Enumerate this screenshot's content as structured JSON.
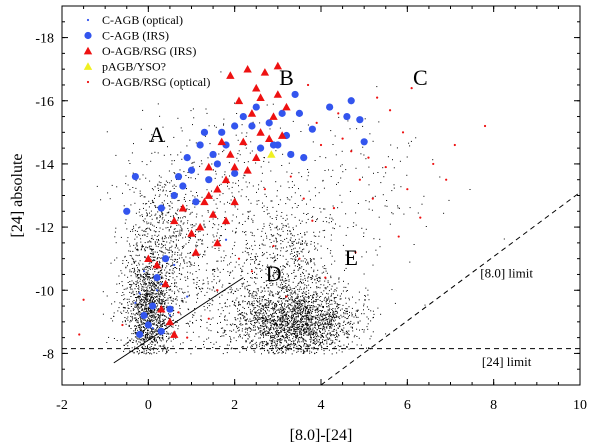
{
  "chart_data": {
    "type": "scatter",
    "title": "",
    "xlabel": "[8.0]-[24]",
    "ylabel": "[24] absolute",
    "xlim": [
      -2,
      10
    ],
    "ylim": [
      -7,
      -19
    ],
    "y_axis_inverted": true,
    "grid": false,
    "legend_position": "top-left",
    "x_ticks": [
      -2,
      0,
      2,
      4,
      6,
      8,
      10
    ],
    "y_ticks": [
      -8,
      -10,
      -12,
      -14,
      -16,
      -18
    ],
    "x_tick_labels": [
      "-2",
      "0",
      "2",
      "4",
      "6",
      "8",
      "10"
    ],
    "y_tick_labels": [
      "-8",
      "-10",
      "-12",
      "-14",
      "-16",
      "-18"
    ],
    "series": [
      {
        "name": "C-AGB (optical)",
        "marker": "small-dot",
        "color": "#3355ee",
        "points": [
          [
            -0.1,
            -10.6
          ],
          [
            0.3,
            -10.2
          ],
          [
            0.6,
            -10.8
          ],
          [
            -0.3,
            -9.6
          ],
          [
            0.5,
            -9.2
          ],
          [
            0.1,
            -8.8
          ],
          [
            1.8,
            -11.6
          ],
          [
            0.9,
            -9.8
          ],
          [
            0.2,
            -10.0
          ],
          [
            -0.2,
            -9.9
          ]
        ]
      },
      {
        "name": "C-AGB (IRS)",
        "marker": "filled-circle",
        "color": "#3355ee",
        "points": [
          [
            -0.3,
            -13.6
          ],
          [
            -0.5,
            -12.5
          ],
          [
            0.3,
            -12.6
          ],
          [
            0.6,
            -13.0
          ],
          [
            0.7,
            -13.6
          ],
          [
            0.9,
            -14.2
          ],
          [
            1.0,
            -13.8
          ],
          [
            1.2,
            -14.6
          ],
          [
            1.3,
            -15.0
          ],
          [
            1.5,
            -14.3
          ],
          [
            1.6,
            -14.0
          ],
          [
            1.8,
            -14.6
          ],
          [
            2.0,
            -15.2
          ],
          [
            2.2,
            -15.5
          ],
          [
            2.5,
            -15.8
          ],
          [
            2.8,
            -15.3
          ],
          [
            3.0,
            -14.6
          ],
          [
            3.2,
            -14.9
          ],
          [
            3.3,
            -14.3
          ],
          [
            3.4,
            -16.2
          ],
          [
            3.5,
            -15.6
          ],
          [
            3.6,
            -14.2
          ],
          [
            3.8,
            -15.1
          ],
          [
            4.2,
            -15.8
          ],
          [
            4.6,
            -15.5
          ],
          [
            4.7,
            -16.0
          ],
          [
            4.9,
            -15.4
          ],
          [
            5.0,
            -14.7
          ],
          [
            2.0,
            -13.7
          ],
          [
            1.1,
            -12.8
          ],
          [
            0.4,
            -11.0
          ],
          [
            0.2,
            -10.4
          ],
          [
            -0.1,
            -9.2
          ],
          [
            0.1,
            -9.5
          ],
          [
            0.5,
            -9.4
          ],
          [
            -0.2,
            -8.6
          ],
          [
            0.8,
            -13.3
          ],
          [
            1.4,
            -13.5
          ],
          [
            2.6,
            -14.5
          ],
          [
            2.9,
            -14.6
          ],
          [
            3.1,
            -15.6
          ],
          [
            1.7,
            -15.0
          ],
          [
            0.0,
            -8.9
          ],
          [
            0.3,
            -8.7
          ],
          [
            2.4,
            -15.2
          ]
        ]
      },
      {
        "name": "O-AGB/RSG (IRS)",
        "marker": "filled-triangle",
        "color": "#ee1111",
        "points": [
          [
            1.9,
            -16.8
          ],
          [
            2.3,
            -17.0
          ],
          [
            2.5,
            -16.4
          ],
          [
            2.7,
            -16.9
          ],
          [
            3.0,
            -17.1
          ],
          [
            2.1,
            -16.0
          ],
          [
            2.4,
            -15.6
          ],
          [
            2.6,
            -15.0
          ],
          [
            2.8,
            -14.8
          ],
          [
            3.0,
            -16.2
          ],
          [
            3.2,
            -15.8
          ],
          [
            2.2,
            -14.7
          ],
          [
            2.5,
            -14.2
          ],
          [
            2.0,
            -13.9
          ],
          [
            1.8,
            -13.5
          ],
          [
            1.6,
            -13.2
          ],
          [
            1.4,
            -13.0
          ],
          [
            1.9,
            -14.3
          ],
          [
            2.3,
            -13.8
          ],
          [
            1.5,
            -12.4
          ],
          [
            1.2,
            -12.0
          ],
          [
            1.0,
            -11.8
          ],
          [
            0.8,
            -12.6
          ],
          [
            1.6,
            -11.5
          ],
          [
            1.3,
            -12.8
          ],
          [
            0.6,
            -12.2
          ],
          [
            0.0,
            -11.0
          ],
          [
            0.2,
            -10.8
          ],
          [
            0.4,
            -10.2
          ],
          [
            0.5,
            -9.0
          ],
          [
            0.6,
            -8.6
          ],
          [
            0.3,
            -9.4
          ],
          [
            1.1,
            -11.2
          ],
          [
            1.7,
            -14.7
          ],
          [
            2.9,
            -15.5
          ],
          [
            3.1,
            -14.9
          ],
          [
            2.0,
            -12.8
          ],
          [
            1.8,
            -12.2
          ],
          [
            1.4,
            -13.9
          ],
          [
            2.6,
            -16.1
          ]
        ]
      },
      {
        "name": "pAGB/YSO?",
        "marker": "filled-triangle",
        "color": "#f0f020",
        "points": [
          [
            2.85,
            -14.3
          ]
        ]
      },
      {
        "name": "O-AGB/RSG (optical)",
        "marker": "small-dot",
        "color": "#ee1111",
        "points": [
          [
            3.9,
            -15.3
          ],
          [
            4.5,
            -14.8
          ],
          [
            5.1,
            -14.2
          ],
          [
            5.5,
            -13.9
          ],
          [
            4.9,
            -13.5
          ],
          [
            6.0,
            -13.2
          ],
          [
            3.6,
            -12.9
          ],
          [
            4.3,
            -12.6
          ],
          [
            5.8,
            -11.7
          ],
          [
            7.8,
            -15.2
          ],
          [
            6.6,
            -14.0
          ],
          [
            5.6,
            -15.7
          ],
          [
            4.0,
            -14.6
          ],
          [
            3.3,
            -13.6
          ],
          [
            4.7,
            -14.4
          ],
          [
            2.7,
            -13.2
          ],
          [
            3.8,
            -12.2
          ],
          [
            2.9,
            -11.4
          ],
          [
            5.2,
            -12.9
          ],
          [
            6.3,
            -12.3
          ],
          [
            7.1,
            -14.6
          ],
          [
            4.4,
            -15.6
          ],
          [
            5.9,
            -15.0
          ],
          [
            3.5,
            -11.0
          ],
          [
            4.1,
            -10.4
          ],
          [
            3.2,
            -9.8
          ],
          [
            2.4,
            -10.6
          ],
          [
            1.6,
            -10.0
          ],
          [
            0.7,
            -9.3
          ],
          [
            -1.5,
            -9.7
          ],
          [
            -1.6,
            -8.6
          ],
          [
            -0.6,
            -8.9
          ],
          [
            0.9,
            -8.5
          ],
          [
            1.4,
            -9.1
          ],
          [
            2.1,
            -11.0
          ],
          [
            4.8,
            -11.2
          ],
          [
            6.9,
            -13.5
          ],
          [
            5.3,
            -16.1
          ],
          [
            6.1,
            -16.4
          ],
          [
            3.7,
            -16.5
          ]
        ]
      }
    ],
    "dense_populations": [
      {
        "label": "field",
        "description": "black small dots",
        "color": "#000000"
      },
      {
        "label": "clump-A",
        "color": "#000000"
      },
      {
        "label": "clump-E",
        "color": "#000000"
      }
    ],
    "region_labels": [
      {
        "text": "A",
        "x": 0.2,
        "y": -14.7
      },
      {
        "text": "B",
        "x": 3.2,
        "y": -16.5
      },
      {
        "text": "C",
        "x": 6.3,
        "y": -16.5
      },
      {
        "text": "D",
        "x": 2.9,
        "y": -10.3
      },
      {
        "text": "E",
        "x": 4.7,
        "y": -10.8
      }
    ],
    "limit_lines": [
      {
        "name": "[8.0] limit",
        "style": "dashed",
        "from": [
          4.0,
          -7.0
        ],
        "to": [
          10.0,
          -13.1
        ]
      },
      {
        "name": "[24] limit",
        "style": "dashed",
        "from": [
          -2.0,
          -8.15
        ],
        "to": [
          10.0,
          -8.15
        ]
      }
    ],
    "limit_labels": [
      {
        "text": "[8.0] limit",
        "x": 8.3,
        "y": -10.4
      },
      {
        "text": "[24] limit",
        "x": 8.3,
        "y": -7.6
      }
    ],
    "reference_line": {
      "style": "solid",
      "from": [
        -0.8,
        -7.7
      ],
      "to": [
        2.2,
        -10.4
      ]
    }
  }
}
